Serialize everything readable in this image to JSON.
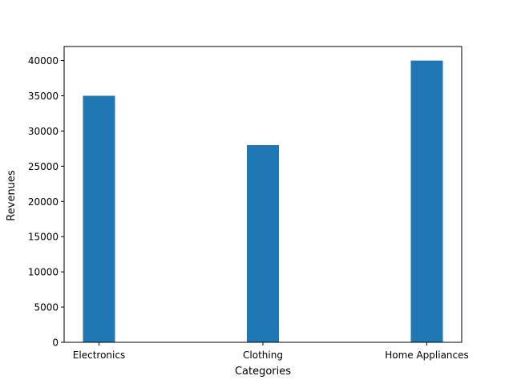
{
  "chart_data": {
    "type": "bar",
    "title": "",
    "xlabel": "Categories",
    "ylabel": "Revenues",
    "categories": [
      "Electronics",
      "Clothing",
      "Home Appliances"
    ],
    "values": [
      35000,
      28000,
      40000
    ],
    "ylim": [
      0,
      42000
    ],
    "yticks": [
      0,
      5000,
      10000,
      15000,
      20000,
      25000,
      30000,
      35000,
      40000
    ],
    "grid": false,
    "legend": "none",
    "bar_color": "#1f77b4"
  }
}
